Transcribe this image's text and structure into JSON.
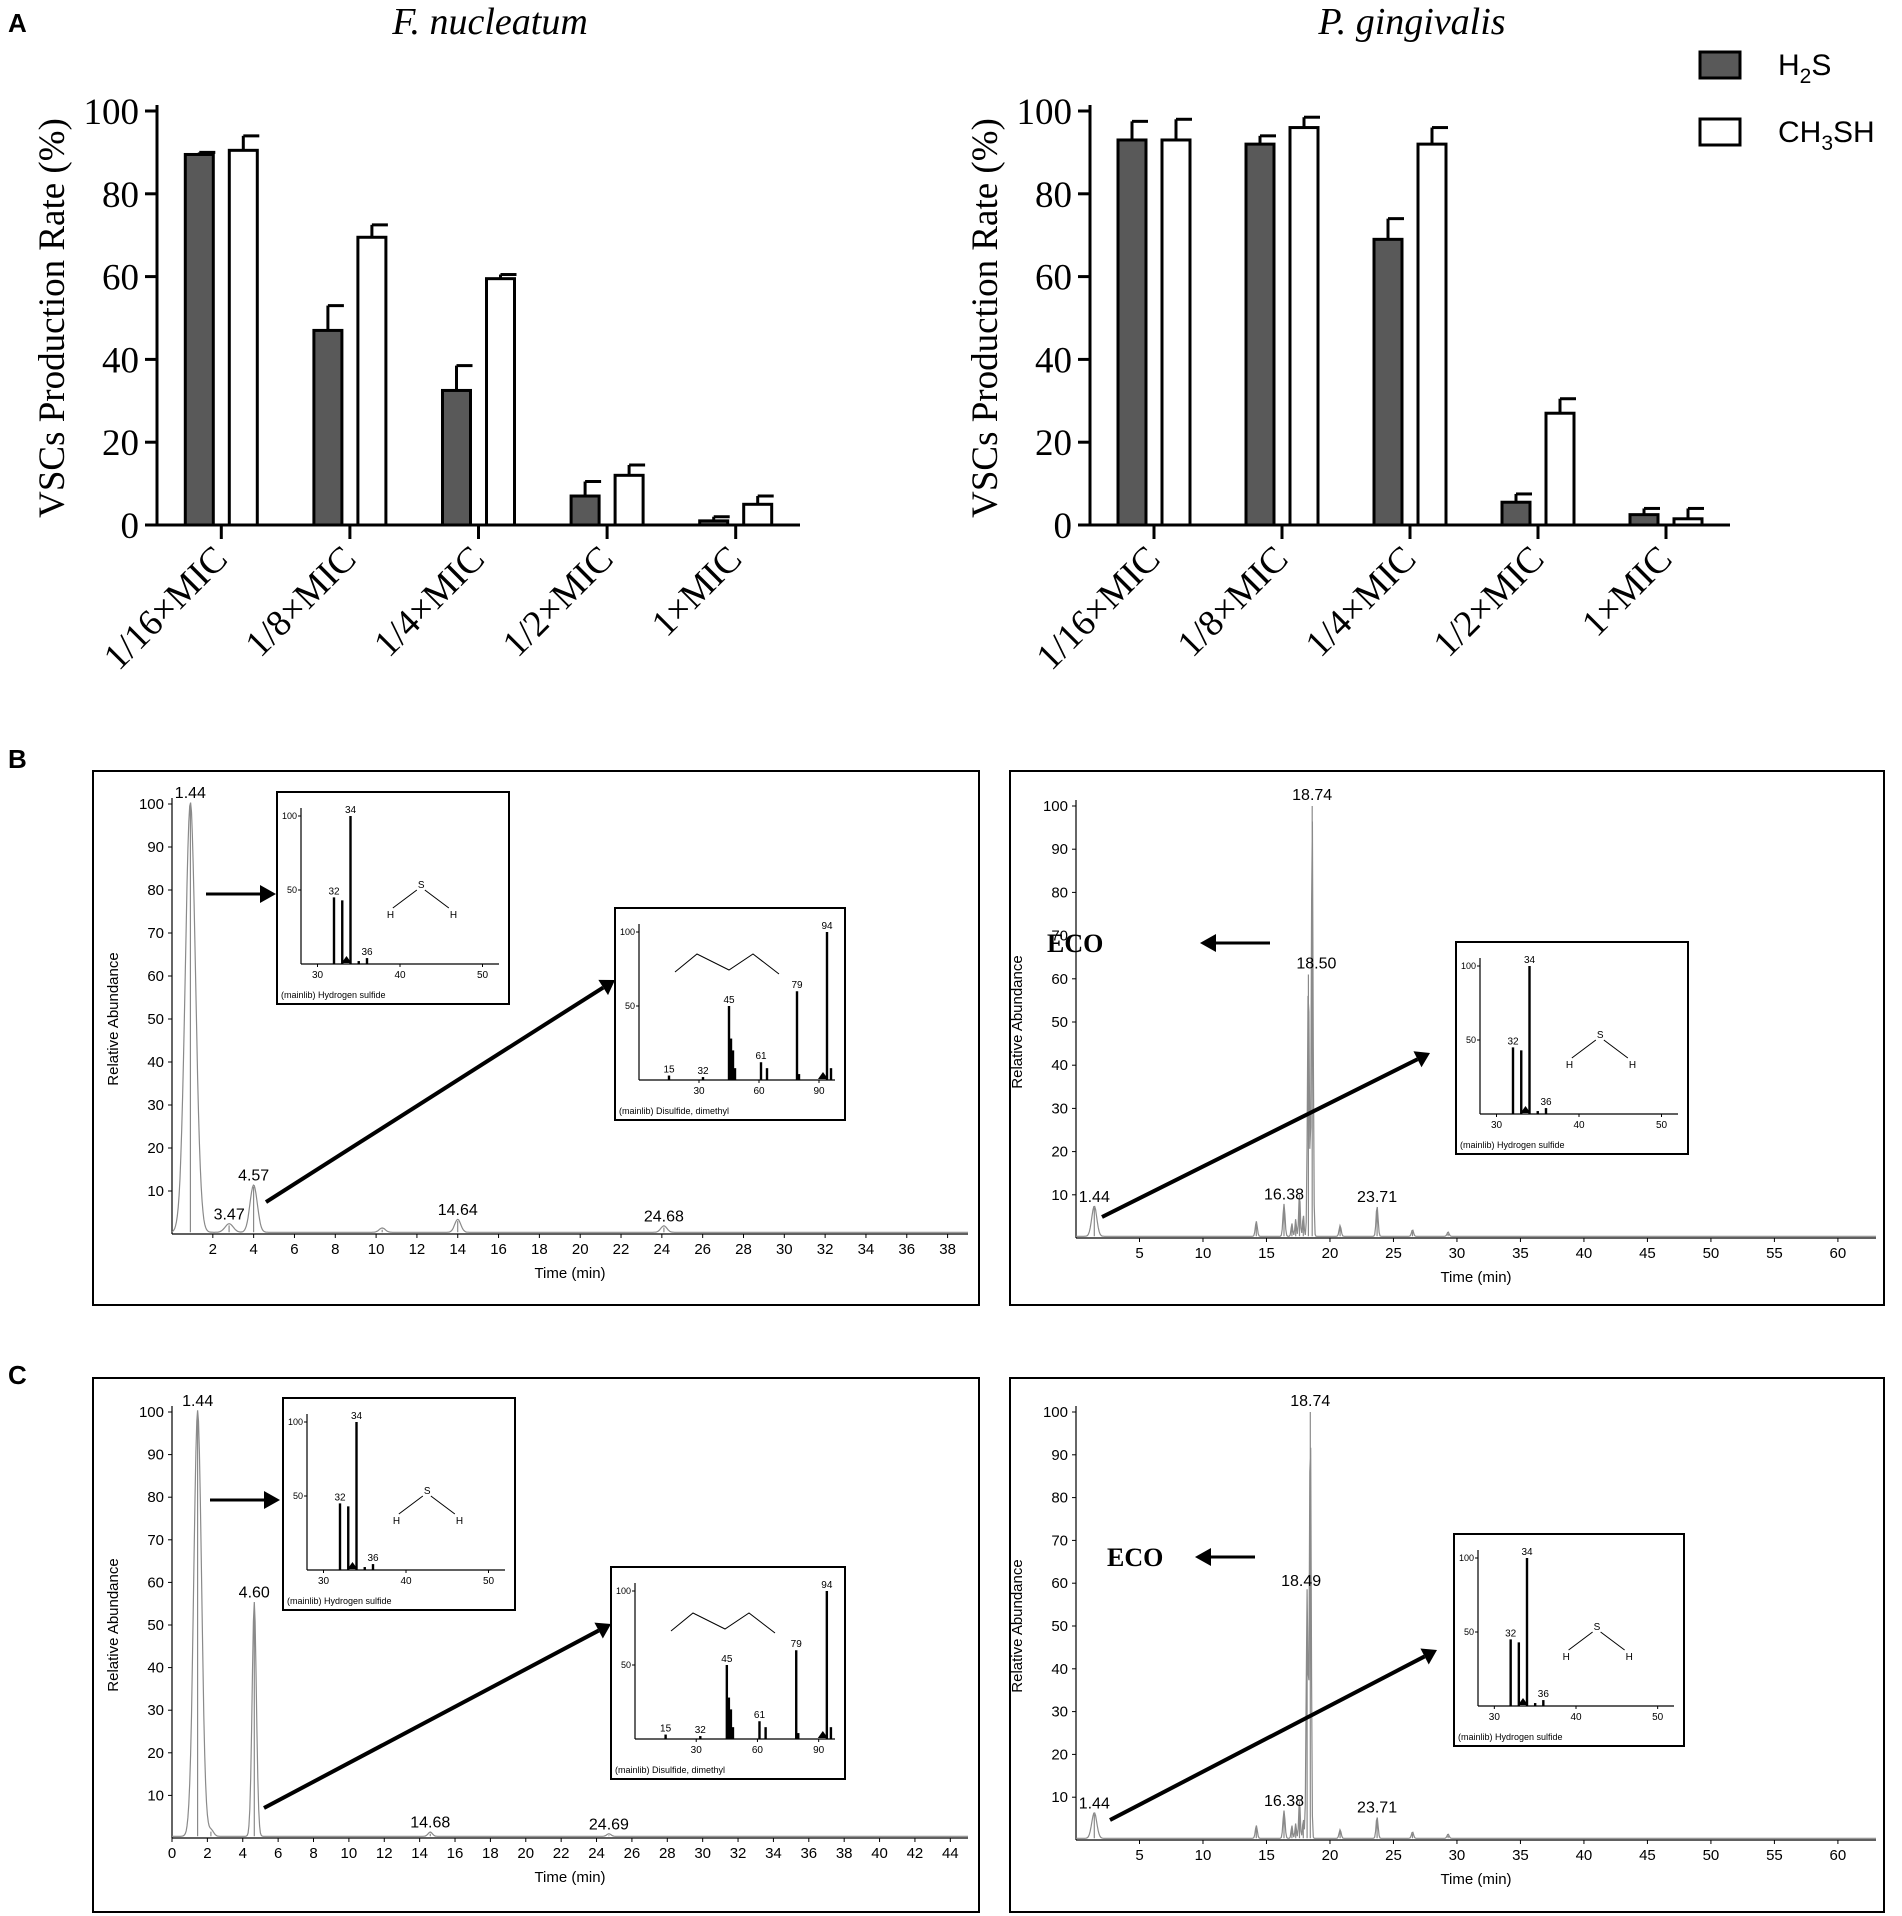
{
  "panel_labels": {
    "a": "A",
    "b": "B",
    "c": "C"
  },
  "colors": {
    "h2s": "#595959",
    "ch3sh": "#ffffff",
    "axis": "#000000",
    "trace": "#8a8a8a"
  },
  "axis_common": {
    "yticks": [
      "0",
      "20",
      "40",
      "60",
      "80",
      "100"
    ]
  },
  "legend": {
    "h2s": {
      "main": "H",
      "sub": "2",
      "tail": "S"
    },
    "ch3sh": {
      "main": "CH",
      "sub": "3",
      "tail": "SH"
    }
  },
  "chart_data": [
    {
      "id": "A-left",
      "type": "bar",
      "title": "F. nucleatum",
      "xlabel": "",
      "ylabel": "VSCs Production Rate (%)",
      "ylim": [
        0,
        100
      ],
      "categories": [
        "1/16×MIC",
        "1/8×MIC",
        "1/4×MIC",
        "1/2×MIC",
        "1×MIC"
      ],
      "series": [
        {
          "name": "H2S",
          "values": [
            89.5,
            47,
            32.5,
            7,
            1
          ],
          "errors": [
            0.5,
            6,
            6,
            3.5,
            1
          ]
        },
        {
          "name": "CH3SH",
          "values": [
            90.5,
            69.5,
            59.5,
            12,
            5
          ],
          "errors": [
            3.5,
            3,
            1,
            2.5,
            2
          ]
        }
      ]
    },
    {
      "id": "A-right",
      "type": "bar",
      "title": "P. gingivalis",
      "xlabel": "",
      "ylabel": "VSCs Production Rate (%)",
      "ylim": [
        0,
        100
      ],
      "categories": [
        "1/16×MIC",
        "1/8×MIC",
        "1/4×MIC",
        "1/2×MIC",
        "1×MIC"
      ],
      "series": [
        {
          "name": "H2S",
          "values": [
            93,
            92,
            69,
            5.5,
            2.5
          ],
          "errors": [
            4.5,
            2,
            5,
            2,
            1.5
          ]
        },
        {
          "name": "CH3SH",
          "values": [
            93,
            96,
            92,
            27,
            1.5
          ],
          "errors": [
            5,
            2.5,
            4,
            3.5,
            2.5
          ]
        }
      ]
    },
    {
      "id": "B-left",
      "type": "line",
      "xlabel": "Time (min)",
      "ylabel": "Relative Abundance",
      "xlim": [
        0,
        39
      ],
      "ylim": [
        0,
        100
      ],
      "xticks": [
        2,
        4,
        6,
        8,
        10,
        12,
        14,
        16,
        18,
        20,
        22,
        24,
        26,
        28,
        30,
        32,
        34,
        36,
        38
      ],
      "yticks": [
        10,
        20,
        30,
        40,
        50,
        60,
        70,
        80,
        90,
        100
      ],
      "peaks": [
        {
          "x": 0.9,
          "y": 100,
          "w": 0.25
        },
        {
          "x": 2.8,
          "y": 2,
          "w": 0.2
        },
        {
          "x": 4.0,
          "y": 11,
          "w": 0.18
        },
        {
          "x": 10.3,
          "y": 1,
          "w": 0.15
        },
        {
          "x": 14.0,
          "y": 3,
          "w": 0.15
        },
        {
          "x": 24.1,
          "y": 1.5,
          "w": 0.15
        }
      ],
      "peak_labels": [
        {
          "text": "1.44",
          "x": 0.9,
          "y": 100
        },
        {
          "text": "3.47",
          "x": 2.8,
          "y": 2
        },
        {
          "text": "4.57",
          "x": 4.0,
          "y": 11
        },
        {
          "text": "14.64",
          "x": 14.0,
          "y": 3
        },
        {
          "text": "24.68",
          "x": 24.1,
          "y": 1.5
        }
      ]
    },
    {
      "id": "B-right",
      "type": "line",
      "xlabel": "Time (min)",
      "ylabel": "Relative Abundance",
      "xlim": [
        0,
        63
      ],
      "ylim": [
        0,
        100
      ],
      "xticks": [
        5,
        10,
        15,
        20,
        25,
        30,
        35,
        40,
        45,
        50,
        55,
        60
      ],
      "yticks": [
        10,
        20,
        30,
        40,
        50,
        60,
        70,
        80,
        90,
        100
      ],
      "annotation": "ECO",
      "peaks": [
        {
          "x": 1.44,
          "y": 7,
          "w": 0.2
        },
        {
          "x": 14.2,
          "y": 3.5,
          "w": 0.08
        },
        {
          "x": 16.38,
          "y": 7.5,
          "w": 0.08
        },
        {
          "x": 17.0,
          "y": 3,
          "w": 0.06
        },
        {
          "x": 17.3,
          "y": 4,
          "w": 0.06
        },
        {
          "x": 17.6,
          "y": 10,
          "w": 0.06
        },
        {
          "x": 17.9,
          "y": 5,
          "w": 0.06
        },
        {
          "x": 18.3,
          "y": 61,
          "w": 0.07
        },
        {
          "x": 18.6,
          "y": 100,
          "w": 0.07
        },
        {
          "x": 20.8,
          "y": 2.5,
          "w": 0.08
        },
        {
          "x": 23.71,
          "y": 7,
          "w": 0.08
        },
        {
          "x": 26.5,
          "y": 1.5,
          "w": 0.08
        },
        {
          "x": 29.3,
          "y": 1,
          "w": 0.08
        }
      ],
      "peak_labels": [
        {
          "text": "1.44",
          "x": 1.44,
          "y": 7
        },
        {
          "text": "16.38",
          "x": 16.38,
          "y": 7.5
        },
        {
          "text": "18.74",
          "x": 18.6,
          "y": 100
        },
        {
          "text": "18.50",
          "x": 18.3,
          "y": 61
        },
        {
          "text": "23.71",
          "x": 23.71,
          "y": 7
        }
      ]
    },
    {
      "id": "C-left",
      "type": "line",
      "xlabel": "Time (min)",
      "ylabel": "Relative Abundance",
      "xlim": [
        0,
        45
      ],
      "ylim": [
        0,
        100
      ],
      "xticks": [
        0,
        2,
        4,
        6,
        8,
        10,
        12,
        14,
        16,
        18,
        20,
        22,
        24,
        26,
        28,
        30,
        32,
        34,
        36,
        38,
        40,
        42,
        44
      ],
      "yticks": [
        10,
        20,
        30,
        40,
        50,
        60,
        70,
        80,
        90,
        100
      ],
      "peaks": [
        {
          "x": 1.45,
          "y": 100,
          "w": 0.22
        },
        {
          "x": 2.2,
          "y": 1.5,
          "w": 0.15
        },
        {
          "x": 4.65,
          "y": 55,
          "w": 0.12
        },
        {
          "x": 14.6,
          "y": 1,
          "w": 0.12
        },
        {
          "x": 24.7,
          "y": 0.6,
          "w": 0.12
        }
      ],
      "peak_labels": [
        {
          "text": "1.44",
          "x": 1.45,
          "y": 100
        },
        {
          "text": "4.60",
          "x": 4.65,
          "y": 55
        },
        {
          "text": "14.68",
          "x": 14.6,
          "y": 1
        },
        {
          "text": "24.69",
          "x": 24.7,
          "y": 0.6
        }
      ]
    },
    {
      "id": "C-right",
      "type": "line",
      "xlabel": "Time (min)",
      "ylabel": "Relative Abundance",
      "xlim": [
        0,
        63
      ],
      "ylim": [
        0,
        100
      ],
      "xticks": [
        5,
        10,
        15,
        20,
        25,
        30,
        35,
        40,
        45,
        50,
        55,
        60
      ],
      "yticks": [
        10,
        20,
        30,
        40,
        50,
        60,
        70,
        80,
        90,
        100
      ],
      "annotation": "ECO",
      "peaks": [
        {
          "x": 1.44,
          "y": 6,
          "w": 0.2
        },
        {
          "x": 14.2,
          "y": 3,
          "w": 0.08
        },
        {
          "x": 16.38,
          "y": 6.5,
          "w": 0.08
        },
        {
          "x": 17.0,
          "y": 3,
          "w": 0.06
        },
        {
          "x": 17.3,
          "y": 3.5,
          "w": 0.06
        },
        {
          "x": 17.6,
          "y": 9,
          "w": 0.06
        },
        {
          "x": 17.9,
          "y": 4.5,
          "w": 0.06
        },
        {
          "x": 18.2,
          "y": 58,
          "w": 0.07
        },
        {
          "x": 18.45,
          "y": 100,
          "w": 0.07
        },
        {
          "x": 20.8,
          "y": 2,
          "w": 0.08
        },
        {
          "x": 23.71,
          "y": 5,
          "w": 0.08
        },
        {
          "x": 26.5,
          "y": 1.5,
          "w": 0.08
        },
        {
          "x": 29.3,
          "y": 1,
          "w": 0.08
        }
      ],
      "peak_labels": [
        {
          "text": "1.44",
          "x": 1.44,
          "y": 6
        },
        {
          "text": "16.38",
          "x": 16.38,
          "y": 6.5
        },
        {
          "text": "18.74",
          "x": 18.45,
          "y": 100
        },
        {
          "text": "18.49",
          "x": 18.2,
          "y": 58
        },
        {
          "text": "23.71",
          "x": 23.71,
          "y": 5
        }
      ]
    }
  ],
  "insets": {
    "h2s": {
      "library_label": "(mainlib) Hydrogen sulfide",
      "xlim": [
        28,
        52
      ],
      "xticks": [
        "30",
        "40",
        "50"
      ],
      "yticks": [
        "50",
        "100"
      ],
      "peaks": [
        {
          "mz": 32,
          "h": 45,
          "label": "32"
        },
        {
          "mz": 33,
          "h": 43,
          "label": ""
        },
        {
          "mz": 34,
          "h": 100,
          "label": "34"
        },
        {
          "mz": 35,
          "h": 2,
          "label": ""
        },
        {
          "mz": 36,
          "h": 4,
          "label": "36"
        }
      ],
      "atoms": {
        "left": "H",
        "center": "S",
        "right": "H"
      }
    },
    "dmds": {
      "library_label": "(mainlib) Disulfide, dimethyl",
      "xlim": [
        0,
        98
      ],
      "xticks": [
        "30",
        "60",
        "90"
      ],
      "yticks": [
        "50",
        "100"
      ],
      "peaks": [
        {
          "mz": 15,
          "h": 3,
          "label": "15"
        },
        {
          "mz": 32,
          "h": 2,
          "label": "32"
        },
        {
          "mz": 45,
          "h": 50,
          "label": "45"
        },
        {
          "mz": 46,
          "h": 28,
          "label": ""
        },
        {
          "mz": 47,
          "h": 20,
          "label": ""
        },
        {
          "mz": 48,
          "h": 8,
          "label": ""
        },
        {
          "mz": 61,
          "h": 12,
          "label": "61"
        },
        {
          "mz": 64,
          "h": 8,
          "label": ""
        },
        {
          "mz": 79,
          "h": 60,
          "label": "79"
        },
        {
          "mz": 80,
          "h": 4,
          "label": ""
        },
        {
          "mz": 94,
          "h": 100,
          "label": "94"
        },
        {
          "mz": 96,
          "h": 8,
          "label": ""
        }
      ]
    }
  }
}
